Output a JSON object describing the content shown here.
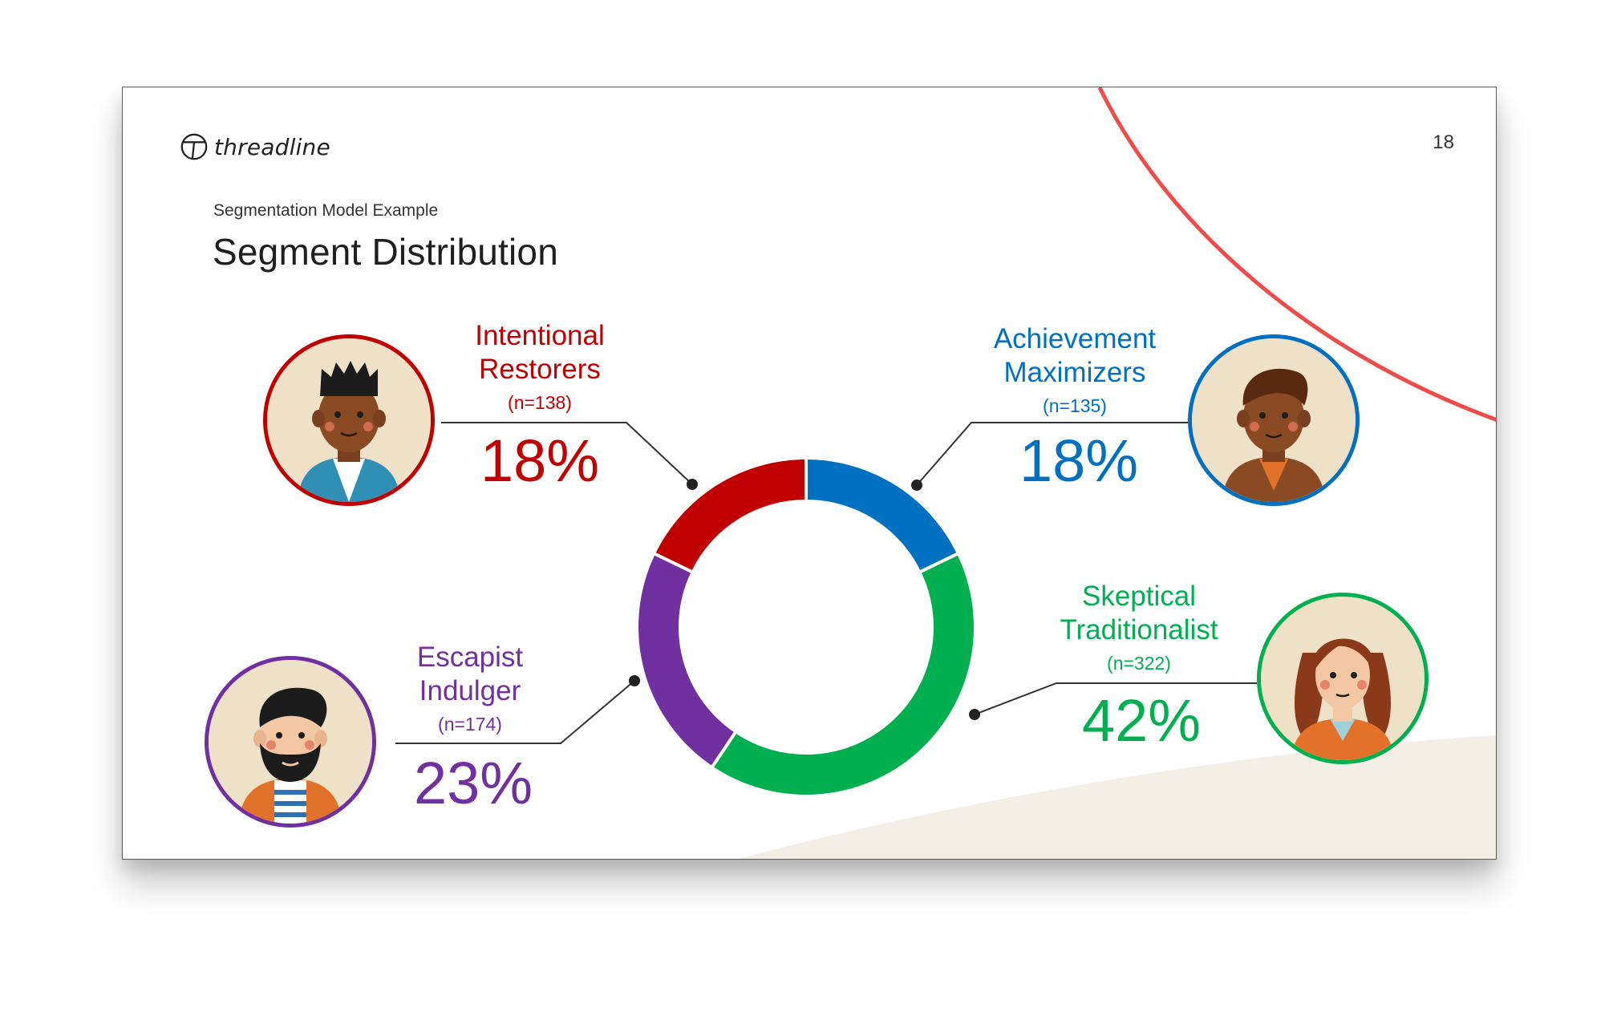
{
  "brand": {
    "name": "threadline",
    "accent": "#f04a4a"
  },
  "page_number": "18",
  "subtitle": "Segmentation Model Example",
  "title": "Segment Distribution",
  "chart_data": {
    "type": "pie",
    "donut": true,
    "title": "Segment Distribution",
    "series": [
      {
        "name": "Achievement Maximizers",
        "n_label": "(n=135)",
        "n": 135,
        "value": 18,
        "label": "18%",
        "color": "#0070c0",
        "avatar_icon": "man-short-hair-avatar-icon"
      },
      {
        "name": "Skeptical Traditionalist",
        "n_label": "(n=322)",
        "n": 322,
        "value": 42,
        "label": "42%",
        "color": "#00b050",
        "avatar_icon": "woman-wavy-hair-avatar-icon"
      },
      {
        "name": "Escapist Indulger",
        "n_label": "(n=174)",
        "n": 174,
        "value": 23,
        "label": "23%",
        "color": "#7030a0",
        "avatar_icon": "bearded-man-avatar-icon"
      },
      {
        "name": "Intentional Restorers",
        "n_label": "(n=138)",
        "n": 138,
        "value": 18,
        "label": "18%",
        "color": "#c00000",
        "avatar_icon": "man-high-top-hair-avatar-icon"
      }
    ]
  },
  "segments_display": {
    "intentional": {
      "line1": "Intentional",
      "line2": "Restorers"
    },
    "achievement": {
      "line1": "Achievement",
      "line2": "Maximizers"
    },
    "escapist": {
      "line1": "Escapist",
      "line2": "Indulger"
    },
    "skeptical": {
      "line1": "Skeptical",
      "line2": "Traditionalist"
    }
  }
}
